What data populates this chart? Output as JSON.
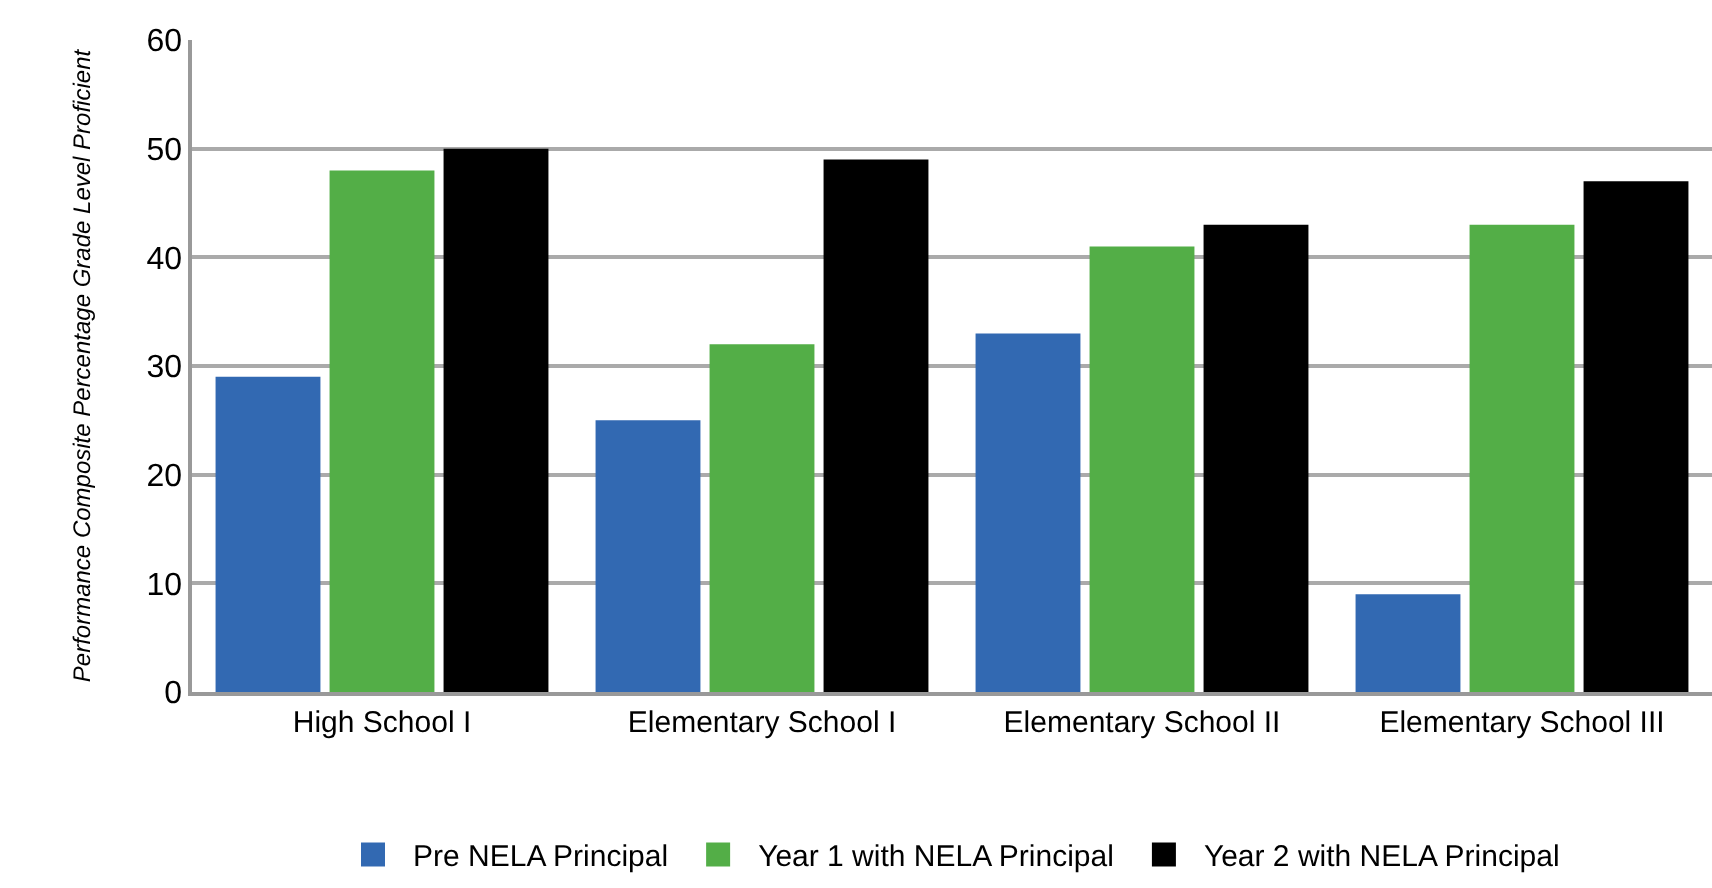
{
  "chart_data": {
    "type": "bar",
    "ylabel": "Performance Composite Percentage Grade Level Proficient",
    "categories": [
      "High School I",
      "Elementary School I",
      "Elementary School II",
      "Elementary School III"
    ],
    "series": [
      {
        "name": "Pre NELA Principal",
        "color": "#3269b2",
        "values": [
          29,
          25,
          33,
          9
        ]
      },
      {
        "name": "Year 1 with NELA Principal",
        "color": "#53ae47",
        "values": [
          48,
          32,
          41,
          43
        ]
      },
      {
        "name": "Year 2 with NELA Principal",
        "color": "#000000",
        "values": [
          50,
          49,
          43,
          47
        ]
      }
    ],
    "ylim": [
      0,
      60
    ],
    "yticks": [
      0,
      10,
      20,
      30,
      40,
      50,
      60
    ],
    "grid": "y",
    "legend": "bottom"
  }
}
